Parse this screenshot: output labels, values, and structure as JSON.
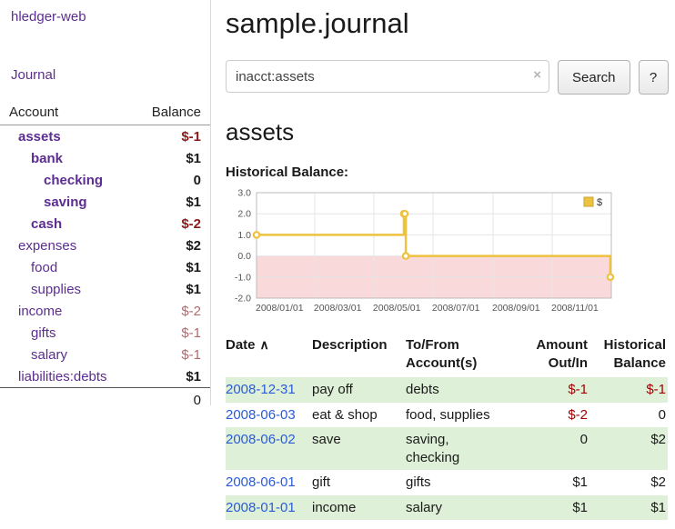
{
  "colors": {
    "purple_link": "#5c2d91",
    "date_link_blue": "#2a5bd7",
    "negative_red": "#a40000",
    "sidebar_negative_bold": "#8b1a1a",
    "sidebar_negative_muted": "#b36b6b",
    "row_highlight_green": "#dff0d8",
    "chart_series_yellow": "#edc240"
  },
  "sidebar": {
    "app_title": "hledger-web",
    "nav": {
      "journal": "Journal"
    },
    "table": {
      "headers": {
        "account": "Account",
        "balance": "Balance"
      },
      "rows": [
        {
          "name": "assets",
          "indent": 1,
          "balance": "$-1",
          "bold": true,
          "neg": true,
          "muted": false
        },
        {
          "name": "bank",
          "indent": 2,
          "balance": "$1",
          "bold": true,
          "neg": false,
          "muted": false
        },
        {
          "name": "checking",
          "indent": 3,
          "balance": "0",
          "bold": true,
          "neg": false,
          "muted": false
        },
        {
          "name": "saving",
          "indent": 3,
          "balance": "$1",
          "bold": true,
          "neg": false,
          "muted": false
        },
        {
          "name": "cash",
          "indent": 2,
          "balance": "$-2",
          "bold": true,
          "neg": true,
          "muted": false
        },
        {
          "name": "expenses",
          "indent": 1,
          "balance": "$2",
          "bold": false,
          "neg": false,
          "muted": false
        },
        {
          "name": "food",
          "indent": 2,
          "balance": "$1",
          "bold": false,
          "neg": false,
          "muted": false
        },
        {
          "name": "supplies",
          "indent": 2,
          "balance": "$1",
          "bold": false,
          "neg": false,
          "muted": false
        },
        {
          "name": "income",
          "indent": 1,
          "balance": "$-2",
          "bold": false,
          "neg": true,
          "muted": true
        },
        {
          "name": "gifts",
          "indent": 2,
          "balance": "$-1",
          "bold": false,
          "neg": true,
          "muted": true
        },
        {
          "name": "salary",
          "indent": 2,
          "balance": "$-1",
          "bold": false,
          "neg": true,
          "muted": true
        },
        {
          "name": "liabilities:debts",
          "indent": 1,
          "balance": "$1",
          "bold": false,
          "neg": false,
          "muted": false
        }
      ],
      "total": "0"
    }
  },
  "main": {
    "page_title": "sample.journal",
    "search": {
      "value": "inacct:assets",
      "clear_icon": "×",
      "search_button": "Search",
      "help_button": "?"
    },
    "account_heading": "assets"
  },
  "chart_data": {
    "type": "line",
    "step": true,
    "title": "Historical Balance:",
    "series": [
      {
        "name": "$",
        "color": "#edc240",
        "points": [
          [
            "2008-01-01",
            1
          ],
          [
            "2008-06-01",
            2
          ],
          [
            "2008-06-02",
            2
          ],
          [
            "2008-06-03",
            0
          ],
          [
            "2008-12-31",
            -1
          ]
        ]
      }
    ],
    "xlim": [
      "2008-01-01",
      "2009-01-01"
    ],
    "ylim": [
      -2,
      3
    ],
    "y_ticks": [
      {
        "v": 3,
        "label": "3.0"
      },
      {
        "v": 2,
        "label": "2.0"
      },
      {
        "v": 1,
        "label": "1.0"
      },
      {
        "v": 0,
        "label": "0.0"
      },
      {
        "v": -1,
        "label": "-1.0"
      },
      {
        "v": -2,
        "label": "-2.0"
      }
    ],
    "x_ticks": [
      {
        "date": "2008-01-01",
        "label": "2008/01/01"
      },
      {
        "date": "2008-03-01",
        "label": "2008/03/01"
      },
      {
        "date": "2008-05-01",
        "label": "2008/05/01"
      },
      {
        "date": "2008-07-01",
        "label": "2008/07/01"
      },
      {
        "date": "2008-09-01",
        "label": "2008/09/01"
      },
      {
        "date": "2008-11-01",
        "label": "2008/11/01"
      }
    ],
    "negative_region_fill": "#f9d9d9",
    "grid": true,
    "legend": {
      "label": "$",
      "position": "top-right"
    }
  },
  "register": {
    "headers": {
      "date": "Date",
      "sort_icon": "∧",
      "description": "Description",
      "accounts": "To/From Account(s)",
      "amount": "Amount Out/In",
      "balance": "Historical Balance"
    },
    "rows": [
      {
        "date": "2008-12-31",
        "description": "pay off",
        "accounts": "debts",
        "amount": "$-1",
        "amount_neg": true,
        "balance": "$-1",
        "balance_neg": true
      },
      {
        "date": "2008-06-03",
        "description": "eat & shop",
        "accounts": "food, supplies",
        "amount": "$-2",
        "amount_neg": true,
        "balance": "0",
        "balance_neg": false
      },
      {
        "date": "2008-06-02",
        "description": "save",
        "accounts": "saving,\nchecking",
        "amount": "0",
        "amount_neg": false,
        "balance": "$2",
        "balance_neg": false
      },
      {
        "date": "2008-06-01",
        "description": "gift",
        "accounts": "gifts",
        "amount": "$1",
        "amount_neg": false,
        "balance": "$2",
        "balance_neg": false
      },
      {
        "date": "2008-01-01",
        "description": "income",
        "accounts": "salary",
        "amount": "$1",
        "amount_neg": false,
        "balance": "$1",
        "balance_neg": false
      }
    ]
  }
}
